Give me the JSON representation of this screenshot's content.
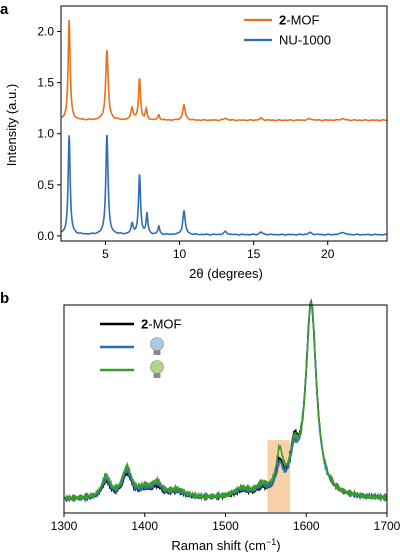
{
  "colors": {
    "orange": "#e8701a",
    "blue": "#2f6db5",
    "black": "#000000",
    "green": "#3b9a2c",
    "highlight": "#f7c99a",
    "bulb_blue": "#a9cbe8",
    "bulb_green": "#b4d38a",
    "bulb_base": "#8a8a8a"
  },
  "chart_data": [
    {
      "panel_label": "a",
      "type": "line",
      "xlabel": "2θ (degrees)",
      "ylabel": "Intensity (a.u.)",
      "xlim": [
        2,
        24
      ],
      "ylim": [
        -0.05,
        2.25
      ],
      "xticks": [
        5,
        10,
        15,
        20
      ],
      "yticks": [
        0.0,
        0.5,
        1.0,
        1.5,
        2.0
      ],
      "xtick_labels": [
        "5",
        "10",
        "15",
        "20"
      ],
      "ytick_labels": [
        "0.0",
        "0.5",
        "1.0",
        "1.5",
        "2.0"
      ],
      "grid": false,
      "legend_position": "top-right",
      "legend": [
        {
          "bold": "2",
          "text": "-MOF",
          "color": "#e8701a"
        },
        {
          "bold": "",
          "text": "NU-1000",
          "color": "#2f6db5"
        }
      ],
      "series": [
        {
          "name": "2-MOF",
          "color": "#e8701a",
          "baseline": 1.12,
          "peaks": [
            [
              2.55,
              0.98,
              0.08
            ],
            [
              5.1,
              0.68,
              0.1
            ],
            [
              6.8,
              0.12,
              0.09
            ],
            [
              7.3,
              0.4,
              0.08
            ],
            [
              7.75,
              0.1,
              0.07
            ],
            [
              8.6,
              0.05,
              0.07
            ],
            [
              10.3,
              0.15,
              0.1
            ],
            [
              13.1,
              0.02,
              0.12
            ],
            [
              15.5,
              0.02,
              0.12
            ],
            [
              18.8,
              0.015,
              0.15
            ],
            [
              21.0,
              0.015,
              0.15
            ]
          ]
        },
        {
          "name": "NU-1000",
          "color": "#2f6db5",
          "baseline": 0.0,
          "peaks": [
            [
              2.55,
              0.97,
              0.08
            ],
            [
              5.1,
              0.98,
              0.09
            ],
            [
              6.8,
              0.1,
              0.09
            ],
            [
              7.3,
              0.58,
              0.08
            ],
            [
              7.8,
              0.2,
              0.07
            ],
            [
              8.6,
              0.08,
              0.07
            ],
            [
              10.3,
              0.23,
              0.1
            ],
            [
              13.1,
              0.03,
              0.12
            ],
            [
              15.5,
              0.025,
              0.12
            ],
            [
              18.8,
              0.02,
              0.15
            ],
            [
              21.0,
              0.025,
              0.15
            ]
          ]
        }
      ]
    },
    {
      "panel_label": "b",
      "type": "line",
      "xlabel": "Raman shift (cm",
      "xlabel_sup": "−1",
      "xlabel_end": ")",
      "xlim": [
        1300,
        1700
      ],
      "xticks": [
        1300,
        1400,
        1500,
        1600,
        1700
      ],
      "xtick_labels": [
        "1300",
        "1400",
        "1500",
        "1600",
        "1700"
      ],
      "ylim": [
        -0.05,
        1.0
      ],
      "y_axis_shown": false,
      "grid": false,
      "highlight_range": [
        1552,
        1580
      ],
      "legend_position": "top-left",
      "legend": [
        {
          "bold": "2",
          "text": "-MOF",
          "color": "#000000",
          "icon": null
        },
        {
          "bold": "",
          "text": "",
          "color": "#2f6db5",
          "icon": "lightbulb-blue"
        },
        {
          "bold": "",
          "text": "",
          "color": "#3b9a2c",
          "icon": "lightbulb-green"
        }
      ],
      "series": [
        {
          "name": "2-MOF",
          "color": "#000000",
          "peaks": [
            [
              1352,
              0.08,
              6
            ],
            [
              1378,
              0.12,
              7
            ],
            [
              1400,
              0.03,
              8
            ],
            [
              1415,
              0.05,
              8
            ],
            [
              1440,
              0.03,
              12
            ],
            [
              1520,
              0.03,
              12
            ],
            [
              1545,
              0.03,
              8
            ],
            [
              1567,
              0.14,
              5
            ],
            [
              1585,
              0.2,
              6
            ],
            [
              1606,
              0.98,
              8
            ]
          ]
        },
        {
          "name": "",
          "color": "#2f6db5",
          "peaks": [
            [
              1352,
              0.09,
              6
            ],
            [
              1378,
              0.13,
              7
            ],
            [
              1400,
              0.03,
              8
            ],
            [
              1415,
              0.06,
              8
            ],
            [
              1440,
              0.03,
              12
            ],
            [
              1520,
              0.035,
              12
            ],
            [
              1545,
              0.04,
              8
            ],
            [
              1567,
              0.13,
              5
            ],
            [
              1585,
              0.16,
              6
            ],
            [
              1606,
              0.97,
              8
            ]
          ]
        },
        {
          "name": "",
          "color": "#3b9a2c",
          "peaks": [
            [
              1352,
              0.11,
              6
            ],
            [
              1378,
              0.15,
              7
            ],
            [
              1400,
              0.04,
              8
            ],
            [
              1415,
              0.07,
              8
            ],
            [
              1440,
              0.04,
              12
            ],
            [
              1520,
              0.04,
              12
            ],
            [
              1545,
              0.05,
              8
            ],
            [
              1567,
              0.2,
              5
            ],
            [
              1585,
              0.18,
              6
            ],
            [
              1606,
              0.98,
              8
            ]
          ]
        }
      ]
    }
  ]
}
